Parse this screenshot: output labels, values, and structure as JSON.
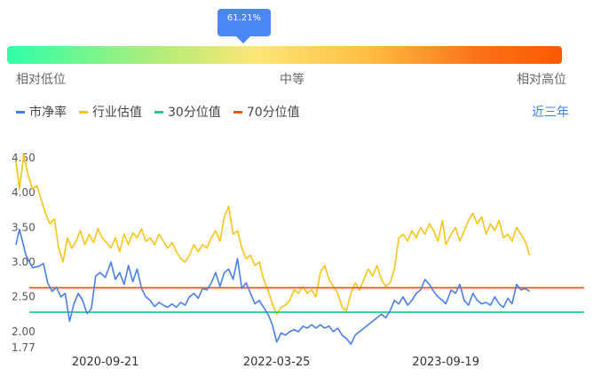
{
  "gauge": {
    "percentile_label": "61.21%",
    "percentile_value": 61.21,
    "low_label": "相对低位",
    "mid_label": "中等",
    "high_label": "相对高位"
  },
  "range_selector": "近三年",
  "colors": {
    "pb": "#4a7fe8",
    "industry": "#f7c41a",
    "p30": "#22cc88",
    "p70": "#e8561a",
    "accent": "#4a86f5"
  },
  "chart_data": {
    "type": "line",
    "title": "",
    "xlabel": "",
    "ylabel": "",
    "legend": "top-left",
    "grid": false,
    "ylim": [
      1.77,
      4.6
    ],
    "y_ticks": [
      "1.77",
      "2.00",
      "2.50",
      "3.00",
      "3.50",
      "4.00",
      "4.50"
    ],
    "y_tick_values": [
      1.77,
      2.0,
      2.5,
      3.0,
      3.5,
      4.0,
      4.5
    ],
    "x_tick_labels": [
      "2020-09-21",
      "2022-03-25",
      "2023-09-19"
    ],
    "x_range": [
      "2019-12-09",
      "2024-12-06"
    ],
    "x_tick_dates": [
      "2020-09-21",
      "2022-03-25",
      "2023-09-19"
    ],
    "series": [
      {
        "name": "市净率",
        "color_key": "pb",
        "points": [
          [
            "2019-12-09",
            3.25
          ],
          [
            "2019-12-20",
            3.47
          ],
          [
            "2020-01-10",
            3.1
          ],
          [
            "2020-01-31",
            2.92
          ],
          [
            "2020-02-21",
            2.94
          ],
          [
            "2020-03-06",
            2.98
          ],
          [
            "2020-03-20",
            2.7
          ],
          [
            "2020-04-03",
            2.58
          ],
          [
            "2020-04-17",
            2.64
          ],
          [
            "2020-05-01",
            2.5
          ],
          [
            "2020-05-15",
            2.55
          ],
          [
            "2020-05-29",
            2.15
          ],
          [
            "2020-06-12",
            2.4
          ],
          [
            "2020-06-26",
            2.55
          ],
          [
            "2020-07-10",
            2.45
          ],
          [
            "2020-07-24",
            2.26
          ],
          [
            "2020-08-07",
            2.33
          ],
          [
            "2020-08-21",
            2.8
          ],
          [
            "2020-09-04",
            2.85
          ],
          [
            "2020-09-21",
            2.78
          ],
          [
            "2020-10-09",
            3.0
          ],
          [
            "2020-10-23",
            2.75
          ],
          [
            "2020-11-06",
            2.85
          ],
          [
            "2020-11-20",
            2.68
          ],
          [
            "2020-12-04",
            2.95
          ],
          [
            "2020-12-18",
            2.72
          ],
          [
            "2021-01-01",
            2.9
          ],
          [
            "2021-01-15",
            2.62
          ],
          [
            "2021-01-29",
            2.5
          ],
          [
            "2021-02-12",
            2.45
          ],
          [
            "2021-02-26",
            2.36
          ],
          [
            "2021-03-12",
            2.42
          ],
          [
            "2021-03-26",
            2.38
          ],
          [
            "2021-04-09",
            2.35
          ],
          [
            "2021-04-23",
            2.4
          ],
          [
            "2021-05-07",
            2.35
          ],
          [
            "2021-05-21",
            2.42
          ],
          [
            "2021-06-04",
            2.38
          ],
          [
            "2021-06-18",
            2.5
          ],
          [
            "2021-07-02",
            2.55
          ],
          [
            "2021-07-16",
            2.48
          ],
          [
            "2021-07-30",
            2.62
          ],
          [
            "2021-08-13",
            2.6
          ],
          [
            "2021-08-27",
            2.7
          ],
          [
            "2021-09-10",
            2.85
          ],
          [
            "2021-09-24",
            2.65
          ],
          [
            "2021-10-08",
            2.85
          ],
          [
            "2021-10-22",
            2.9
          ],
          [
            "2021-11-05",
            2.75
          ],
          [
            "2021-11-19",
            3.05
          ],
          [
            "2021-12-03",
            2.62
          ],
          [
            "2021-12-17",
            2.7
          ],
          [
            "2021-12-31",
            2.55
          ],
          [
            "2022-01-14",
            2.4
          ],
          [
            "2022-01-28",
            2.45
          ],
          [
            "2022-02-11",
            2.35
          ],
          [
            "2022-02-25",
            2.25
          ],
          [
            "2022-03-11",
            2.1
          ],
          [
            "2022-03-25",
            1.85
          ],
          [
            "2022-04-08",
            1.98
          ],
          [
            "2022-04-22",
            1.95
          ],
          [
            "2022-05-06",
            2.0
          ],
          [
            "2022-05-20",
            2.03
          ],
          [
            "2022-06-03",
            2.0
          ],
          [
            "2022-06-17",
            2.08
          ],
          [
            "2022-07-01",
            2.05
          ],
          [
            "2022-07-15",
            2.1
          ],
          [
            "2022-07-29",
            2.05
          ],
          [
            "2022-08-12",
            2.1
          ],
          [
            "2022-08-26",
            2.05
          ],
          [
            "2022-09-09",
            2.08
          ],
          [
            "2022-09-23",
            2.0
          ],
          [
            "2022-10-07",
            2.05
          ],
          [
            "2022-10-21",
            1.95
          ],
          [
            "2022-11-04",
            1.9
          ],
          [
            "2022-11-18",
            1.82
          ],
          [
            "2022-12-02",
            1.95
          ],
          [
            "2022-12-16",
            2.0
          ],
          [
            "2022-12-30",
            2.05
          ],
          [
            "2023-01-13",
            2.1
          ],
          [
            "2023-01-27",
            2.15
          ],
          [
            "2023-02-10",
            2.2
          ],
          [
            "2023-02-24",
            2.25
          ],
          [
            "2023-03-10",
            2.2
          ],
          [
            "2023-03-24",
            2.3
          ],
          [
            "2023-04-07",
            2.45
          ],
          [
            "2023-04-21",
            2.4
          ],
          [
            "2023-05-05",
            2.5
          ],
          [
            "2023-05-19",
            2.38
          ],
          [
            "2023-06-02",
            2.45
          ],
          [
            "2023-06-16",
            2.55
          ],
          [
            "2023-06-30",
            2.6
          ],
          [
            "2023-07-14",
            2.75
          ],
          [
            "2023-07-28",
            2.68
          ],
          [
            "2023-08-11",
            2.58
          ],
          [
            "2023-08-25",
            2.5
          ],
          [
            "2023-09-08",
            2.45
          ],
          [
            "2023-09-19",
            2.4
          ],
          [
            "2023-10-06",
            2.6
          ],
          [
            "2023-10-20",
            2.55
          ],
          [
            "2023-11-03",
            2.68
          ],
          [
            "2023-11-17",
            2.45
          ],
          [
            "2023-12-01",
            2.38
          ],
          [
            "2023-12-15",
            2.55
          ],
          [
            "2023-12-29",
            2.45
          ],
          [
            "2024-01-12",
            2.4
          ],
          [
            "2024-01-26",
            2.42
          ],
          [
            "2024-02-09",
            2.38
          ],
          [
            "2024-02-23",
            2.5
          ],
          [
            "2024-03-08",
            2.4
          ],
          [
            "2024-03-22",
            2.35
          ],
          [
            "2024-04-05",
            2.48
          ],
          [
            "2024-04-19",
            2.4
          ],
          [
            "2024-05-03",
            2.68
          ],
          [
            "2024-05-17",
            2.6
          ],
          [
            "2024-05-31",
            2.62
          ],
          [
            "2024-06-14",
            2.58
          ]
        ]
      },
      {
        "name": "行业估值",
        "color_key": "industry",
        "points": [
          [
            "2019-12-09",
            4.45
          ],
          [
            "2019-12-20",
            4.05
          ],
          [
            "2020-01-03",
            4.55
          ],
          [
            "2020-01-17",
            4.25
          ],
          [
            "2020-01-31",
            4.05
          ],
          [
            "2020-02-14",
            4.1
          ],
          [
            "2020-02-28",
            3.9
          ],
          [
            "2020-03-13",
            3.7
          ],
          [
            "2020-03-27",
            3.55
          ],
          [
            "2020-04-10",
            3.62
          ],
          [
            "2020-04-24",
            3.2
          ],
          [
            "2020-05-08",
            3.0
          ],
          [
            "2020-05-22",
            3.35
          ],
          [
            "2020-06-05",
            3.2
          ],
          [
            "2020-06-19",
            3.3
          ],
          [
            "2020-07-03",
            3.45
          ],
          [
            "2020-07-17",
            3.25
          ],
          [
            "2020-07-31",
            3.4
          ],
          [
            "2020-08-14",
            3.28
          ],
          [
            "2020-08-28",
            3.48
          ],
          [
            "2020-09-11",
            3.35
          ],
          [
            "2020-09-21",
            3.3
          ],
          [
            "2020-10-09",
            3.2
          ],
          [
            "2020-10-23",
            3.35
          ],
          [
            "2020-11-06",
            3.15
          ],
          [
            "2020-11-20",
            3.4
          ],
          [
            "2020-12-04",
            3.25
          ],
          [
            "2020-12-18",
            3.42
          ],
          [
            "2021-01-01",
            3.35
          ],
          [
            "2021-01-15",
            3.48
          ],
          [
            "2021-01-29",
            3.3
          ],
          [
            "2021-02-12",
            3.35
          ],
          [
            "2021-02-26",
            3.25
          ],
          [
            "2021-03-12",
            3.4
          ],
          [
            "2021-03-26",
            3.3
          ],
          [
            "2021-04-09",
            3.2
          ],
          [
            "2021-04-23",
            3.28
          ],
          [
            "2021-05-07",
            3.15
          ],
          [
            "2021-05-21",
            3.05
          ],
          [
            "2021-06-04",
            3.0
          ],
          [
            "2021-06-18",
            3.1
          ],
          [
            "2021-07-02",
            3.25
          ],
          [
            "2021-07-16",
            3.15
          ],
          [
            "2021-07-30",
            3.25
          ],
          [
            "2021-08-13",
            3.2
          ],
          [
            "2021-08-27",
            3.35
          ],
          [
            "2021-09-10",
            3.45
          ],
          [
            "2021-09-24",
            3.3
          ],
          [
            "2021-10-08",
            3.65
          ],
          [
            "2021-10-22",
            3.8
          ],
          [
            "2021-11-05",
            3.4
          ],
          [
            "2021-11-19",
            3.45
          ],
          [
            "2021-12-03",
            3.2
          ],
          [
            "2021-12-17",
            3.05
          ],
          [
            "2021-12-31",
            3.1
          ],
          [
            "2022-01-14",
            2.95
          ],
          [
            "2022-01-28",
            3.0
          ],
          [
            "2022-02-11",
            2.75
          ],
          [
            "2022-02-25",
            2.6
          ],
          [
            "2022-03-11",
            2.4
          ],
          [
            "2022-03-25",
            2.25
          ],
          [
            "2022-04-08",
            2.35
          ],
          [
            "2022-04-22",
            2.38
          ],
          [
            "2022-05-06",
            2.45
          ],
          [
            "2022-05-20",
            2.6
          ],
          [
            "2022-06-03",
            2.55
          ],
          [
            "2022-06-17",
            2.65
          ],
          [
            "2022-07-01",
            2.55
          ],
          [
            "2022-07-15",
            2.6
          ],
          [
            "2022-07-29",
            2.5
          ],
          [
            "2022-08-12",
            2.85
          ],
          [
            "2022-08-26",
            2.95
          ],
          [
            "2022-09-09",
            2.75
          ],
          [
            "2022-09-23",
            2.65
          ],
          [
            "2022-10-07",
            2.55
          ],
          [
            "2022-10-21",
            2.35
          ],
          [
            "2022-11-04",
            2.3
          ],
          [
            "2022-11-18",
            2.55
          ],
          [
            "2022-12-02",
            2.7
          ],
          [
            "2022-12-16",
            2.6
          ],
          [
            "2022-12-30",
            2.75
          ],
          [
            "2023-01-13",
            2.9
          ],
          [
            "2023-01-27",
            2.8
          ],
          [
            "2023-02-10",
            2.95
          ],
          [
            "2023-02-24",
            2.75
          ],
          [
            "2023-03-10",
            2.65
          ],
          [
            "2023-03-24",
            2.7
          ],
          [
            "2023-04-07",
            2.9
          ],
          [
            "2023-04-21",
            3.35
          ],
          [
            "2023-05-05",
            3.4
          ],
          [
            "2023-05-19",
            3.3
          ],
          [
            "2023-06-02",
            3.45
          ],
          [
            "2023-06-16",
            3.35
          ],
          [
            "2023-06-30",
            3.5
          ],
          [
            "2023-07-14",
            3.4
          ],
          [
            "2023-07-28",
            3.55
          ],
          [
            "2023-08-11",
            3.45
          ],
          [
            "2023-08-25",
            3.3
          ],
          [
            "2023-09-08",
            3.6
          ],
          [
            "2023-09-19",
            3.25
          ],
          [
            "2023-10-06",
            3.4
          ],
          [
            "2023-10-20",
            3.5
          ],
          [
            "2023-11-03",
            3.3
          ],
          [
            "2023-11-17",
            3.45
          ],
          [
            "2023-12-01",
            3.6
          ],
          [
            "2023-12-15",
            3.7
          ],
          [
            "2023-12-29",
            3.55
          ],
          [
            "2024-01-12",
            3.65
          ],
          [
            "2024-01-26",
            3.4
          ],
          [
            "2024-02-09",
            3.55
          ],
          [
            "2024-02-23",
            3.45
          ],
          [
            "2024-03-08",
            3.6
          ],
          [
            "2024-03-22",
            3.35
          ],
          [
            "2024-04-05",
            3.4
          ],
          [
            "2024-04-19",
            3.3
          ],
          [
            "2024-05-03",
            3.5
          ],
          [
            "2024-05-17",
            3.4
          ],
          [
            "2024-05-31",
            3.3
          ],
          [
            "2024-06-14",
            3.1
          ]
        ]
      },
      {
        "name": "30分位值",
        "color_key": "p30",
        "constant": 2.28
      },
      {
        "name": "70分位值",
        "color_key": "p70",
        "constant": 2.63
      }
    ]
  }
}
